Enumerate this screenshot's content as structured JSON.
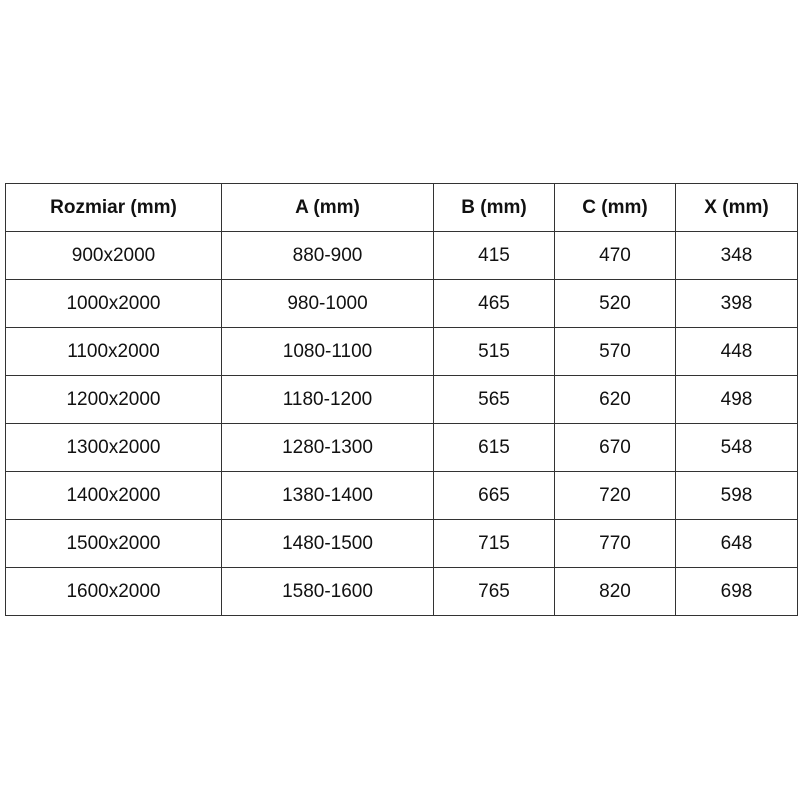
{
  "headers": [
    "Rozmiar (mm)",
    "A (mm)",
    "B (mm)",
    "C (mm)",
    "X (mm)"
  ],
  "rows": [
    [
      "900x2000",
      "880-900",
      "415",
      "470",
      "348"
    ],
    [
      "1000x2000",
      "980-1000",
      "465",
      "520",
      "398"
    ],
    [
      "1100x2000",
      "1080-1100",
      "515",
      "570",
      "448"
    ],
    [
      "1200x2000",
      "1180-1200",
      "565",
      "620",
      "498"
    ],
    [
      "1300x2000",
      "1280-1300",
      "615",
      "670",
      "548"
    ],
    [
      "1400x2000",
      "1380-1400",
      "665",
      "720",
      "598"
    ],
    [
      "1500x2000",
      "1480-1500",
      "715",
      "770",
      "648"
    ],
    [
      "1600x2000",
      "1580-1600",
      "765",
      "820",
      "698"
    ]
  ]
}
